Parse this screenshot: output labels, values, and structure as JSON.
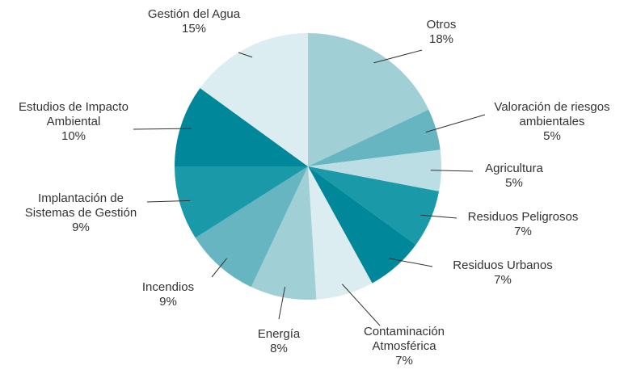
{
  "chart_data": {
    "type": "pie",
    "categories": [
      "Otros",
      "Valoración de riesgos\nambientales",
      "Agricultura",
      "Residuos Peligrosos",
      "Residuos Urbanos",
      "Contaminación\nAtmosférica",
      "Energía",
      "Incendios",
      "Implantación de\nSistemas de Gestión",
      "Estudios de Impacto\nAmbiental",
      "Gestión del Agua"
    ],
    "values": [
      18,
      5,
      5,
      7,
      7,
      7,
      8,
      9,
      9,
      10,
      15
    ],
    "value_labels": [
      "18%",
      "5%",
      "5%",
      "7%",
      "7%",
      "7%",
      "8%",
      "9%",
      "9%",
      "10%",
      "15%"
    ],
    "colors": [
      "#a0cfd6",
      "#66b5c0",
      "#badee4",
      "#1a9aa8",
      "#00889a",
      "#dcedf1",
      "#a0cfd6",
      "#66b5c0",
      "#1a9aa8",
      "#00889a",
      "#dcedf1"
    ]
  }
}
